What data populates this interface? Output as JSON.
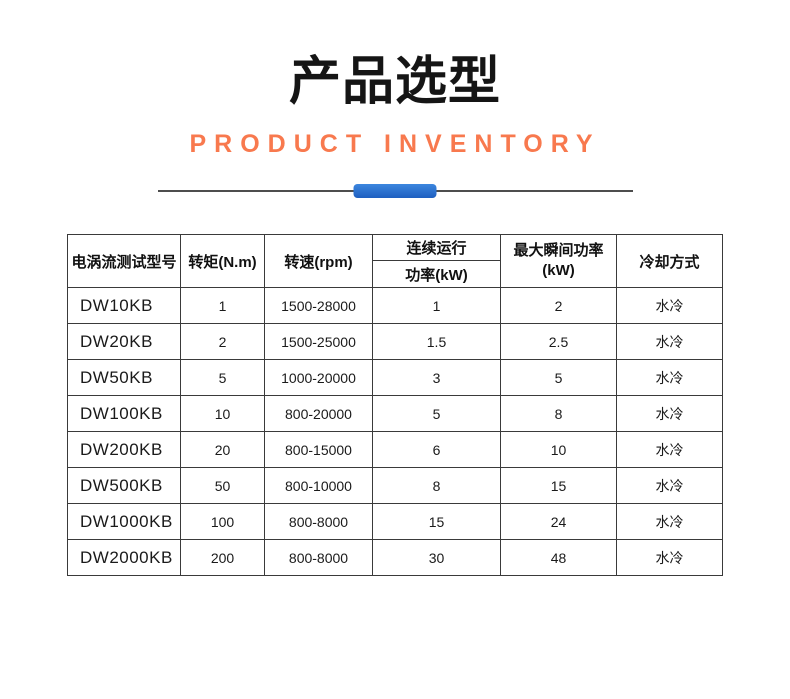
{
  "header": {
    "title_cn": "产品选型",
    "subtitle_en": "PRODUCT INVENTORY"
  },
  "colors": {
    "accent_orange": "#F8794E",
    "pill_blue_top": "#3C86DE",
    "pill_blue_bottom": "#1E5FC0",
    "divider_line": "#4D4D4D",
    "table_border": "#3A3A3A"
  },
  "table": {
    "headers": {
      "model": "电涡流测试型号",
      "torque": "转矩(N.m)",
      "speed": "转速(rpm)",
      "continuous_line1": "连续运行",
      "continuous_line2": "功率(kW)",
      "max_line1": "最大瞬间功率",
      "max_line2": "(kW)",
      "cooling": "冷却方式"
    },
    "rows": [
      {
        "model": "DW10KB",
        "torque": "1",
        "speed": "1500-28000",
        "continuous_kw": "1",
        "max_kw": "2",
        "cooling": "水冷"
      },
      {
        "model": "DW20KB",
        "torque": "2",
        "speed": "1500-25000",
        "continuous_kw": "1.5",
        "max_kw": "2.5",
        "cooling": "水冷"
      },
      {
        "model": "DW50KB",
        "torque": "5",
        "speed": "1000-20000",
        "continuous_kw": "3",
        "max_kw": "5",
        "cooling": "水冷"
      },
      {
        "model": "DW100KB",
        "torque": "10",
        "speed": "800-20000",
        "continuous_kw": "5",
        "max_kw": "8",
        "cooling": "水冷"
      },
      {
        "model": "DW200KB",
        "torque": "20",
        "speed": "800-15000",
        "continuous_kw": "6",
        "max_kw": "10",
        "cooling": "水冷"
      },
      {
        "model": "DW500KB",
        "torque": "50",
        "speed": "800-10000",
        "continuous_kw": "8",
        "max_kw": "15",
        "cooling": "水冷"
      },
      {
        "model": "DW1000KB",
        "torque": "100",
        "speed": "800-8000",
        "continuous_kw": "15",
        "max_kw": "24",
        "cooling": "水冷"
      },
      {
        "model": "DW2000KB",
        "torque": "200",
        "speed": "800-8000",
        "continuous_kw": "30",
        "max_kw": "48",
        "cooling": "水冷"
      }
    ]
  }
}
